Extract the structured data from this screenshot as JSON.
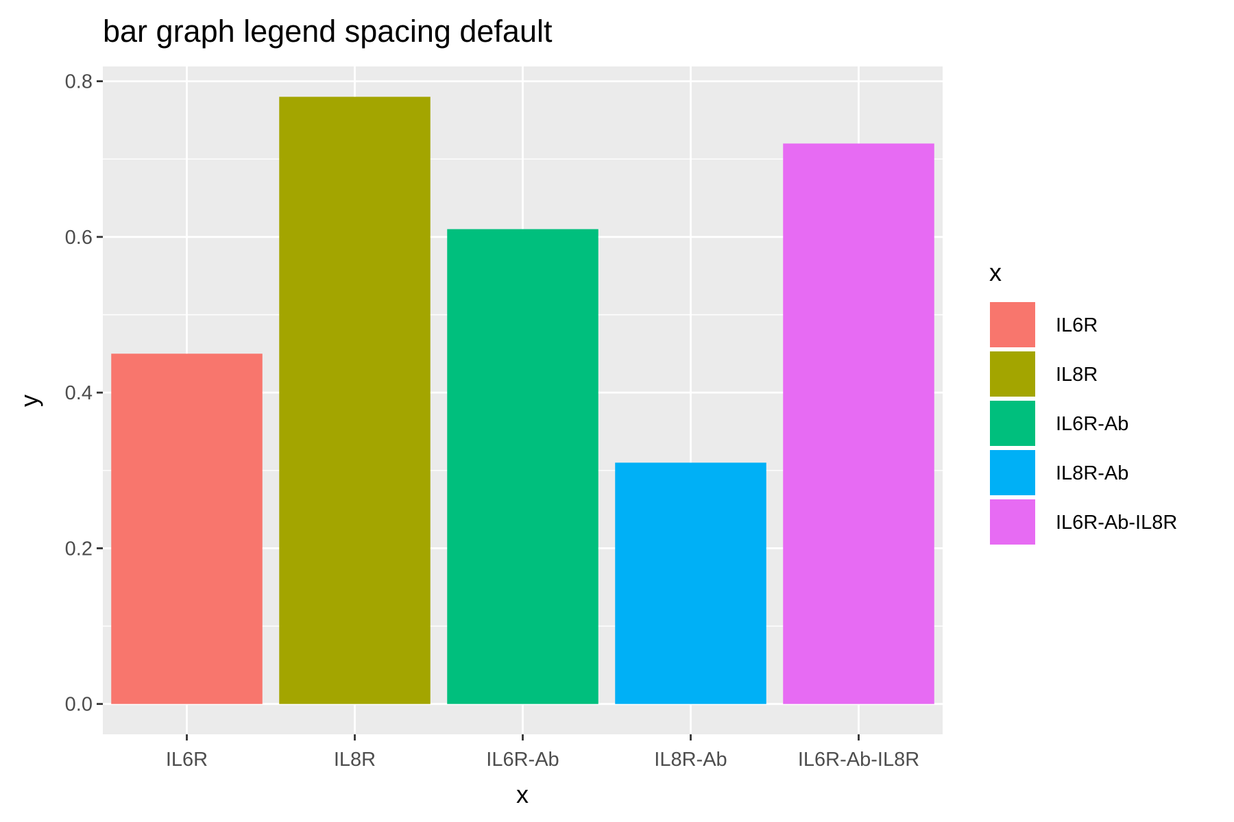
{
  "chart_data": {
    "type": "bar",
    "title": "bar graph legend spacing default",
    "xlabel": "x",
    "ylabel": "y",
    "categories": [
      "IL6R",
      "IL8R",
      "IL6R-Ab",
      "IL8R-Ab",
      "IL6R-Ab-IL8R"
    ],
    "values": [
      0.45,
      0.78,
      0.61,
      0.31,
      0.72
    ],
    "colors": [
      "#F8766D",
      "#A3A500",
      "#00BF7D",
      "#00B0F6",
      "#E76BF3"
    ],
    "ylim": [
      -0.039,
      0.819
    ],
    "yticks": [
      0.0,
      0.2,
      0.4,
      0.6,
      0.8
    ],
    "ytick_labels": [
      "0.0",
      "0.2",
      "0.4",
      "0.6",
      "0.8"
    ],
    "grid": true,
    "legend": {
      "title": "x",
      "position": "right",
      "entries": [
        "IL6R",
        "IL8R",
        "IL6R-Ab",
        "IL8R-Ab",
        "IL6R-Ab-IL8R"
      ]
    },
    "panel_background": "#EBEBEB",
    "grid_color": "#FFFFFF",
    "tick_color": "#333333"
  }
}
